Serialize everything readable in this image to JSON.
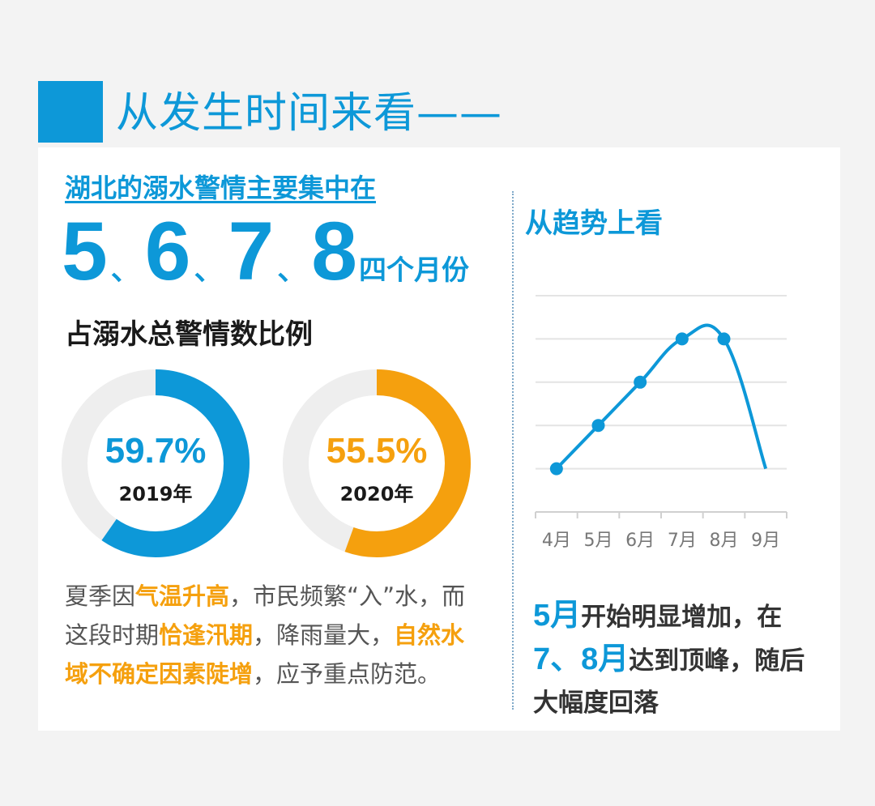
{
  "header": {
    "title": "从发生时间来看——"
  },
  "left": {
    "lead": "湖北的溺水警情主要集中在",
    "months": [
      "5",
      "6",
      "7",
      "8"
    ],
    "sep": "、",
    "months_suffix": "四个月份",
    "ratio_label": "占溺水总警情数比例",
    "donuts": [
      {
        "year": "2019年",
        "percent_label": "59.7%",
        "value": 59.7,
        "color": "#0d98d8"
      },
      {
        "year": "2020年",
        "percent_label": "55.5%",
        "value": 55.5,
        "color": "#f5a00e"
      }
    ],
    "desc": {
      "p1": "夏季因",
      "h1": "气温升高",
      "p2": "，市民频繁“入”水，而这段时期",
      "h2": "恰逢汛期",
      "p3": "，降雨量大，",
      "h3": "自然水域不确定因素陡增",
      "p4": "，应予重点防范。"
    }
  },
  "right": {
    "title": "从趋势上看",
    "conclusion": {
      "b1": "5月",
      "t1": "开始明显增加，在",
      "b2": "7、8月",
      "t2": "达到顶峰，随后大幅度回落"
    }
  },
  "colors": {
    "blue": "#0d98d8",
    "orange": "#f5a00e",
    "ring_track": "#eeeeee",
    "grid": "#e4e4e4"
  },
  "chart_data": {
    "type": "line",
    "categories": [
      "4月",
      "5月",
      "6月",
      "7月",
      "8月",
      "9月"
    ],
    "series": [
      {
        "values": [
          1.0,
          2.0,
          3.0,
          4.0,
          4.0,
          1.0
        ]
      }
    ],
    "ylim": [
      0,
      5
    ],
    "grid": true,
    "xlabel": "",
    "ylabel": "",
    "title": ""
  }
}
